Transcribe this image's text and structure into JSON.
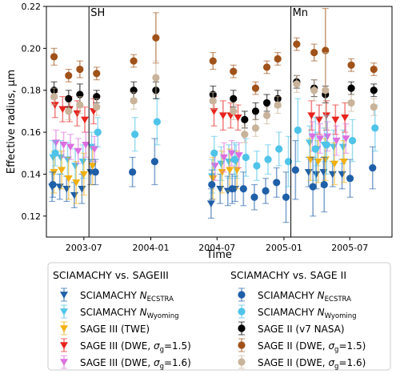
{
  "chart_data": {
    "type": "scatter",
    "xlabel": "Time",
    "ylabel": "Effective radius, µm",
    "ylim": [
      0.11,
      0.22
    ],
    "xlim": [
      "2003-03-20",
      "2005-10-25"
    ],
    "x_ticks": [
      "2003-07",
      "2004-01",
      "2004-07",
      "2005-01",
      "2005-07"
    ],
    "y_ticks": [
      "0.12",
      "0.14",
      "0.16",
      "0.18",
      "0.20",
      "0.22"
    ],
    "annotations": [
      {
        "text": "SH",
        "date": "2003-07-15",
        "type": "vline"
      },
      {
        "text": "Mn",
        "date": "2005-01-20",
        "type": "vline"
      }
    ],
    "legend": {
      "placement": "below",
      "groups": [
        {
          "heading": "SCIAMACHY vs. SAGEIII",
          "entries": [
            "SCIAMACHY N_ECSTRA",
            "SCIAMACHY N_Wyoming",
            "SAGE III (TWE)",
            "SAGE III (DWE, σg=1.5)",
            "SAGE III (DWE, σg=1.6)"
          ]
        },
        {
          "heading": "SCIAMACHY vs. SAGE II",
          "entries": [
            "SCIAMACHY N_ECSTRA",
            "SCIAMACHY N_Wyoming",
            "SAGE II (v7 NASA)",
            "SAGE II (DWE, σg=1.5)",
            "SAGE II (DWE, σg=1.6)"
          ]
        }
      ]
    },
    "series": [
      {
        "name": "SCIAMACHY N_ECSTRA (vs. SAGEIII)",
        "marker": "triangle-down",
        "color": "#1f5fa8",
        "points": [
          [
            "2003-04-10",
            0.134,
            0.007
          ],
          [
            "2003-05-01",
            0.134,
            0.006
          ],
          [
            "2003-05-20",
            0.133,
            0.006
          ],
          [
            "2003-06-10",
            0.13,
            0.006
          ],
          [
            "2003-07-01",
            0.133,
            0.007
          ],
          [
            "2003-07-25",
            0.141,
            0.006
          ],
          [
            "2004-06-20",
            0.126,
            0.007
          ],
          [
            "2004-07-15",
            0.133,
            0.007
          ],
          [
            "2004-08-05",
            0.132,
            0.007
          ],
          [
            "2004-08-25",
            0.133,
            0.006
          ],
          [
            "2005-03-15",
            0.141,
            0.007
          ],
          [
            "2005-04-05",
            0.14,
            0.007
          ],
          [
            "2005-04-25",
            0.141,
            0.007
          ],
          [
            "2005-05-20",
            0.14,
            0.006
          ],
          [
            "2005-06-15",
            0.14,
            0.007
          ]
        ]
      },
      {
        "name": "SCIAMACHY N_Wyoming (vs. SAGEIII)",
        "marker": "triangle-down",
        "color": "#4fc3e8",
        "points": [
          [
            "2003-04-10",
            0.148,
            0.008
          ],
          [
            "2003-05-01",
            0.148,
            0.008
          ],
          [
            "2003-05-20",
            0.147,
            0.008
          ],
          [
            "2003-06-10",
            0.144,
            0.008
          ],
          [
            "2003-07-01",
            0.146,
            0.008
          ],
          [
            "2003-07-25",
            0.153,
            0.007
          ],
          [
            "2004-06-20",
            0.139,
            0.008
          ],
          [
            "2004-07-15",
            0.145,
            0.008
          ],
          [
            "2004-08-05",
            0.146,
            0.008
          ],
          [
            "2004-08-25",
            0.146,
            0.008
          ],
          [
            "2005-03-15",
            0.155,
            0.008
          ],
          [
            "2005-04-05",
            0.152,
            0.008
          ],
          [
            "2005-04-25",
            0.154,
            0.008
          ],
          [
            "2005-05-20",
            0.153,
            0.008
          ],
          [
            "2005-06-15",
            0.153,
            0.008
          ]
        ]
      },
      {
        "name": "SAGE III (TWE)",
        "marker": "triangle-down",
        "color": "#f2b011",
        "points": [
          [
            "2003-04-10",
            0.141,
            0.01
          ],
          [
            "2003-05-01",
            0.142,
            0.009
          ],
          [
            "2003-05-20",
            0.138,
            0.01
          ],
          [
            "2003-06-10",
            0.136,
            0.01
          ],
          [
            "2003-07-01",
            0.14,
            0.01
          ],
          [
            "2003-07-25",
            0.144,
            0.009
          ],
          [
            "2004-06-20",
            0.138,
            0.01
          ],
          [
            "2004-07-15",
            0.141,
            0.01
          ],
          [
            "2004-08-05",
            0.142,
            0.01
          ],
          [
            "2004-08-25",
            0.142,
            0.009
          ],
          [
            "2005-03-15",
            0.147,
            0.01
          ],
          [
            "2005-04-05",
            0.146,
            0.01
          ],
          [
            "2005-04-25",
            0.147,
            0.01
          ],
          [
            "2005-05-20",
            0.145,
            0.01
          ],
          [
            "2005-06-15",
            0.146,
            0.01
          ]
        ]
      },
      {
        "name": "SAGE III (DWE, σg=1.5)",
        "marker": "triangle-down",
        "color": "#e8231e",
        "points": [
          [
            "2003-04-10",
            0.173,
            0.006
          ],
          [
            "2003-05-01",
            0.171,
            0.006
          ],
          [
            "2003-05-20",
            0.171,
            0.006
          ],
          [
            "2003-06-10",
            0.169,
            0.006
          ],
          [
            "2003-07-01",
            0.166,
            0.006
          ],
          [
            "2003-07-25",
            0.17,
            0.006
          ],
          [
            "2004-06-20",
            0.17,
            0.007
          ],
          [
            "2004-07-15",
            0.168,
            0.007
          ],
          [
            "2004-08-05",
            0.168,
            0.006
          ],
          [
            "2004-08-25",
            0.167,
            0.006
          ],
          [
            "2005-03-15",
            0.168,
            0.007
          ],
          [
            "2005-04-05",
            0.166,
            0.007
          ],
          [
            "2005-04-25",
            0.168,
            0.007
          ],
          [
            "2005-05-20",
            0.166,
            0.007
          ],
          [
            "2005-06-15",
            0.167,
            0.007
          ]
        ]
      },
      {
        "name": "SAGE III (DWE, σg=1.6)",
        "marker": "triangle-down",
        "color": "#dd6fe0",
        "points": [
          [
            "2003-04-10",
            0.155,
            0.006
          ],
          [
            "2003-05-01",
            0.154,
            0.006
          ],
          [
            "2003-05-20",
            0.153,
            0.006
          ],
          [
            "2003-06-10",
            0.151,
            0.006
          ],
          [
            "2003-07-01",
            0.154,
            0.006
          ],
          [
            "2003-07-25",
            0.152,
            0.006
          ],
          [
            "2004-06-20",
            0.144,
            0.007
          ],
          [
            "2004-07-15",
            0.148,
            0.007
          ],
          [
            "2004-08-05",
            0.15,
            0.006
          ],
          [
            "2004-08-25",
            0.149,
            0.006
          ],
          [
            "2005-03-15",
            0.158,
            0.007
          ],
          [
            "2005-04-05",
            0.157,
            0.007
          ],
          [
            "2005-04-25",
            0.158,
            0.007
          ],
          [
            "2005-05-20",
            0.156,
            0.007
          ],
          [
            "2005-06-15",
            0.157,
            0.007
          ]
        ]
      },
      {
        "name": "SCIAMACHY N_ECSTRA (vs. SAGE II)",
        "marker": "circle",
        "color": "#1f5fa8",
        "points": [
          [
            "2003-04-10",
            0.135,
            0.006
          ],
          [
            "2003-08-05",
            0.141,
            0.006
          ],
          [
            "2003-11-15",
            0.141,
            0.007
          ],
          [
            "2004-01-15",
            0.146,
            0.011
          ],
          [
            "2004-06-20",
            0.135,
            0.007
          ],
          [
            "2004-08-15",
            0.133,
            0.007
          ],
          [
            "2004-09-15",
            0.133,
            0.008
          ],
          [
            "2004-10-15",
            0.129,
            0.006
          ],
          [
            "2004-11-15",
            0.132,
            0.006
          ],
          [
            "2004-12-15",
            0.136,
            0.007
          ],
          [
            "2005-01-10",
            0.129,
            0.012
          ],
          [
            "2005-02-05",
            0.142,
            0.014
          ],
          [
            "2005-03-25",
            0.134,
            0.014
          ],
          [
            "2005-04-25",
            0.135,
            0.013
          ],
          [
            "2005-07-05",
            0.138,
            0.009
          ],
          [
            "2005-09-05",
            0.143,
            0.01
          ]
        ]
      },
      {
        "name": "SCIAMACHY N_Wyoming (vs. SAGE II)",
        "marker": "circle",
        "color": "#4fc3e8",
        "points": [
          [
            "2003-04-10",
            0.15,
            0.006
          ],
          [
            "2003-08-05",
            0.16,
            0.007
          ],
          [
            "2003-11-15",
            0.159,
            0.008
          ],
          [
            "2004-01-15",
            0.165,
            0.011
          ],
          [
            "2004-06-20",
            0.15,
            0.008
          ],
          [
            "2004-08-15",
            0.147,
            0.008
          ],
          [
            "2004-09-15",
            0.148,
            0.009
          ],
          [
            "2004-10-15",
            0.144,
            0.007
          ],
          [
            "2004-11-15",
            0.147,
            0.007
          ],
          [
            "2004-12-15",
            0.152,
            0.008
          ],
          [
            "2005-01-10",
            0.146,
            0.012
          ],
          [
            "2005-02-05",
            0.161,
            0.015
          ],
          [
            "2005-03-25",
            0.152,
            0.015
          ],
          [
            "2005-04-25",
            0.154,
            0.014
          ],
          [
            "2005-07-05",
            0.156,
            0.01
          ],
          [
            "2005-09-05",
            0.162,
            0.011
          ]
        ]
      },
      {
        "name": "SAGE II (v7 NASA)",
        "marker": "circle",
        "color": "#000000",
        "points": [
          [
            "2003-04-10",
            0.18,
            0.004
          ],
          [
            "2003-05-20",
            0.176,
            0.004
          ],
          [
            "2003-06-20",
            0.178,
            0.005
          ],
          [
            "2003-08-05",
            0.177,
            0.003
          ],
          [
            "2003-11-15",
            0.18,
            0.004
          ],
          [
            "2004-01-15",
            0.18,
            0.004
          ],
          [
            "2004-06-20",
            0.178,
            0.004
          ],
          [
            "2004-08-15",
            0.176,
            0.004
          ],
          [
            "2004-09-15",
            0.166,
            0.004
          ],
          [
            "2004-10-15",
            0.17,
            0.004
          ],
          [
            "2004-11-15",
            0.174,
            0.004
          ],
          [
            "2004-12-15",
            0.176,
            0.004
          ],
          [
            "2005-02-05",
            0.184,
            0.003
          ],
          [
            "2005-03-25",
            0.181,
            0.004
          ],
          [
            "2005-04-25",
            0.178,
            0.004
          ],
          [
            "2005-07-05",
            0.181,
            0.003
          ],
          [
            "2005-09-05",
            0.18,
            0.003
          ]
        ]
      },
      {
        "name": "SAGE II (DWE, σg=1.5)",
        "marker": "circle",
        "color": "#a0521a",
        "points": [
          [
            "2003-04-10",
            0.196,
            0.004
          ],
          [
            "2003-05-20",
            0.187,
            0.003
          ],
          [
            "2003-06-20",
            0.19,
            0.004
          ],
          [
            "2003-08-05",
            0.188,
            0.003
          ],
          [
            "2003-11-15",
            0.194,
            0.003
          ],
          [
            "2004-01-15",
            0.205,
            0.012
          ],
          [
            "2004-06-20",
            0.194,
            0.004
          ],
          [
            "2004-08-15",
            0.189,
            0.003
          ],
          [
            "2004-10-15",
            0.181,
            0.003
          ],
          [
            "2004-11-15",
            0.191,
            0.003
          ],
          [
            "2004-12-15",
            0.195,
            0.003
          ],
          [
            "2005-02-05",
            0.202,
            0.003
          ],
          [
            "2005-03-25",
            0.198,
            0.004
          ],
          [
            "2005-04-25",
            0.199,
            0.02
          ],
          [
            "2005-07-05",
            0.192,
            0.003
          ],
          [
            "2005-09-05",
            0.19,
            0.003
          ]
        ]
      },
      {
        "name": "SAGE II (DWE, σg=1.6)",
        "marker": "circle",
        "color": "#c9b39a",
        "points": [
          [
            "2003-04-10",
            0.177,
            0.004
          ],
          [
            "2003-05-20",
            0.17,
            0.004
          ],
          [
            "2003-06-20",
            0.173,
            0.004
          ],
          [
            "2003-08-05",
            0.172,
            0.004
          ],
          [
            "2003-11-15",
            0.175,
            0.004
          ],
          [
            "2004-01-15",
            0.186,
            0.008
          ],
          [
            "2004-06-20",
            0.175,
            0.004
          ],
          [
            "2004-08-15",
            0.17,
            0.004
          ],
          [
            "2004-09-15",
            0.159,
            0.004
          ],
          [
            "2004-10-15",
            0.162,
            0.004
          ],
          [
            "2004-11-15",
            0.168,
            0.004
          ],
          [
            "2004-12-15",
            0.173,
            0.004
          ],
          [
            "2005-02-05",
            0.183,
            0.004
          ],
          [
            "2005-03-25",
            0.18,
            0.005
          ],
          [
            "2005-04-25",
            0.18,
            0.018
          ],
          [
            "2005-07-05",
            0.174,
            0.004
          ],
          [
            "2005-09-05",
            0.172,
            0.004
          ]
        ]
      }
    ]
  }
}
